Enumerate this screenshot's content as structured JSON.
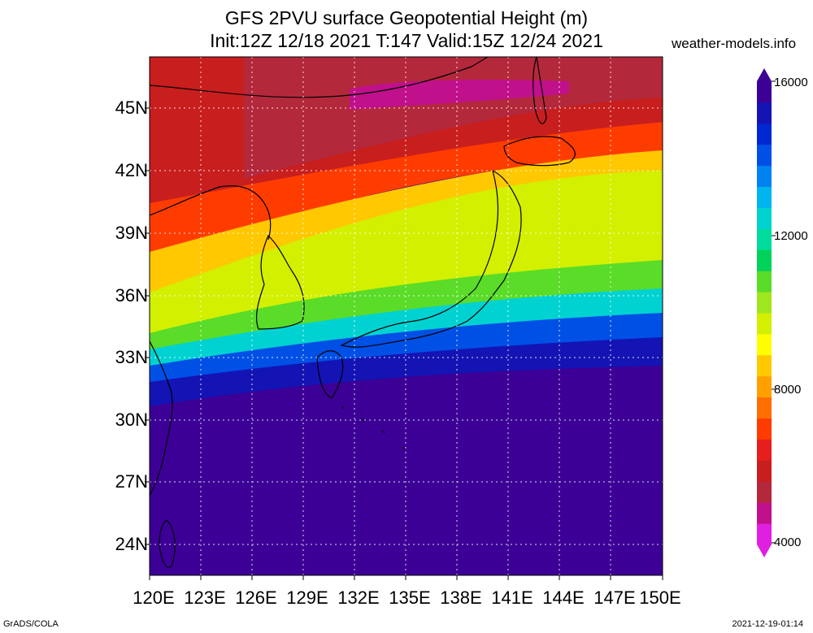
{
  "title": {
    "line1": "GFS 2PVU surface Geopotential Height (m)",
    "line2": "Init:12Z 12/18 2021 T:147 Valid:15Z 12/24 2021"
  },
  "site_label": "weather-models.info",
  "axes": {
    "x_labels": [
      "120E",
      "123E",
      "126E",
      "129E",
      "132E",
      "135E",
      "138E",
      "141E",
      "144E",
      "147E",
      "150E"
    ],
    "y_labels": [
      "45N",
      "42N",
      "39N",
      "36N",
      "33N",
      "30N",
      "27N",
      "24N"
    ]
  },
  "colorbar": {
    "labels": [
      "16000",
      "12000",
      "8000",
      "4000"
    ],
    "colors": [
      "#e020e0",
      "#c0108c",
      "#b4283c",
      "#c81e1e",
      "#e61e1e",
      "#ff3c00",
      "#ff6e00",
      "#ffa000",
      "#ffc800",
      "#ffff00",
      "#d2f000",
      "#a0e61e",
      "#5adc28",
      "#00d25a",
      "#00dc9b",
      "#00d2d2",
      "#00b4f0",
      "#0082f0",
      "#0050e6",
      "#0028d2",
      "#1414b4",
      "#3c0096"
    ],
    "range": [
      4000,
      16000
    ]
  },
  "credits": {
    "left": "GrADS/COLA",
    "right": "2021-12-19-01:14"
  }
}
